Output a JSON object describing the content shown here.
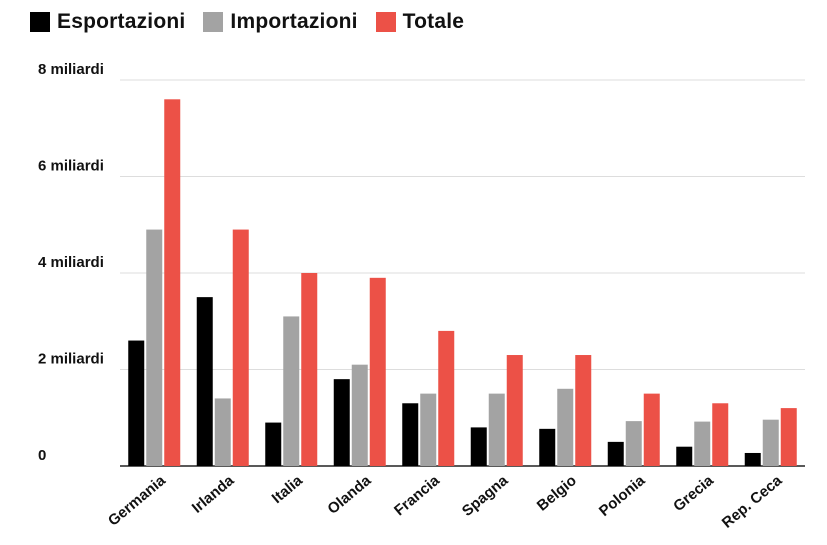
{
  "chart_data": {
    "type": "bar",
    "title": "",
    "xlabel": "",
    "ylabel": "",
    "categories": [
      "Germania",
      "Irlanda",
      "Italia",
      "Olanda",
      "Francia",
      "Spagna",
      "Belgio",
      "Polonia",
      "Grecia",
      "Rep. Ceca"
    ],
    "series": [
      {
        "name": "Esportazioni",
        "color": "#000000",
        "values": [
          2.6,
          3.5,
          0.9,
          1.8,
          1.3,
          0.8,
          0.77,
          0.5,
          0.4,
          0.27
        ]
      },
      {
        "name": "Importazioni",
        "color": "#a3a3a3",
        "values": [
          4.9,
          1.4,
          3.1,
          2.1,
          1.5,
          1.5,
          1.6,
          0.93,
          0.92,
          0.96
        ]
      },
      {
        "name": "Totale",
        "color": "#ec5147",
        "values": [
          7.6,
          4.9,
          4.0,
          3.9,
          2.8,
          2.3,
          2.3,
          1.5,
          1.3,
          1.2
        ]
      }
    ],
    "ylim": [
      0,
      8
    ],
    "yticks": [
      0,
      2,
      4,
      6,
      8
    ],
    "ytick_labels": [
      "0",
      "2 miliardi",
      "4 miliardi",
      "6 miliardi",
      "8 miliardi"
    ],
    "grid": true,
    "legend_position": "top-left"
  }
}
